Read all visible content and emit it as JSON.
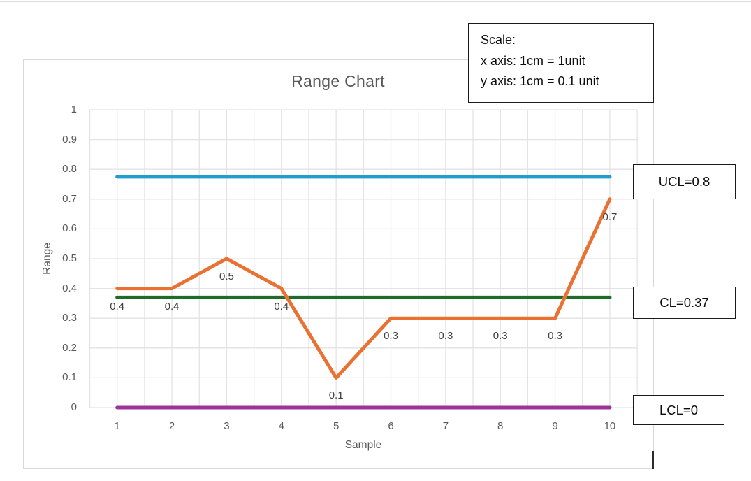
{
  "scale_note": {
    "line1": "Scale:",
    "line2": "x axis: 1cm = 1unit",
    "line3": "y axis: 1cm = 0.1 unit"
  },
  "chart_data": {
    "type": "line",
    "title": "Range Chart",
    "xlabel": "Sample",
    "ylabel": "Range",
    "x": [
      1,
      2,
      3,
      4,
      5,
      6,
      7,
      8,
      9,
      10
    ],
    "series": [
      {
        "name": "Range",
        "color": "#E97132",
        "values": [
          0.4,
          0.4,
          0.5,
          0.4,
          0.1,
          0.3,
          0.3,
          0.3,
          0.3,
          0.7
        ]
      }
    ],
    "data_labels": [
      "0.4",
      "0.4",
      "0.5",
      "0.4",
      "0.1",
      "0.3",
      "0.3",
      "0.3",
      "0.3",
      "0.7"
    ],
    "control_lines": [
      {
        "name": "UCL",
        "label": "UCL=0.8",
        "value": 0.8,
        "line_value": 0.775,
        "color": "#1F9ECE"
      },
      {
        "name": "CL",
        "label": "CL=0.37",
        "value": 0.37,
        "line_value": 0.37,
        "color": "#1F6B2A"
      },
      {
        "name": "LCL",
        "label": "LCL=0",
        "value": 0,
        "line_value": 0,
        "color": "#9D3397"
      }
    ],
    "ylim": [
      0,
      1
    ],
    "xlim": [
      0.5,
      10.5
    ],
    "yticks": [
      "1",
      "0.9",
      "0.8",
      "0.7",
      "0.6",
      "0.5",
      "0.4",
      "0.3",
      "0.2",
      "0.1",
      "0"
    ],
    "ytick_values": [
      1,
      0.9,
      0.8,
      0.7,
      0.6,
      0.5,
      0.4,
      0.3,
      0.2,
      0.1,
      0
    ],
    "xticks": [
      "1",
      "2",
      "3",
      "4",
      "5",
      "6",
      "7",
      "8",
      "9",
      "10"
    ],
    "grid": {
      "on": true,
      "x_step": 0.5,
      "y_step": 0.1,
      "color": "#E3E3E3"
    },
    "legend": "none"
  },
  "colors": {
    "title_text": "#595959",
    "tick_text": "#595959",
    "data_label_text": "#404040",
    "card_border": "#d9d9d9",
    "annotation_border": "#1a1a1a"
  }
}
